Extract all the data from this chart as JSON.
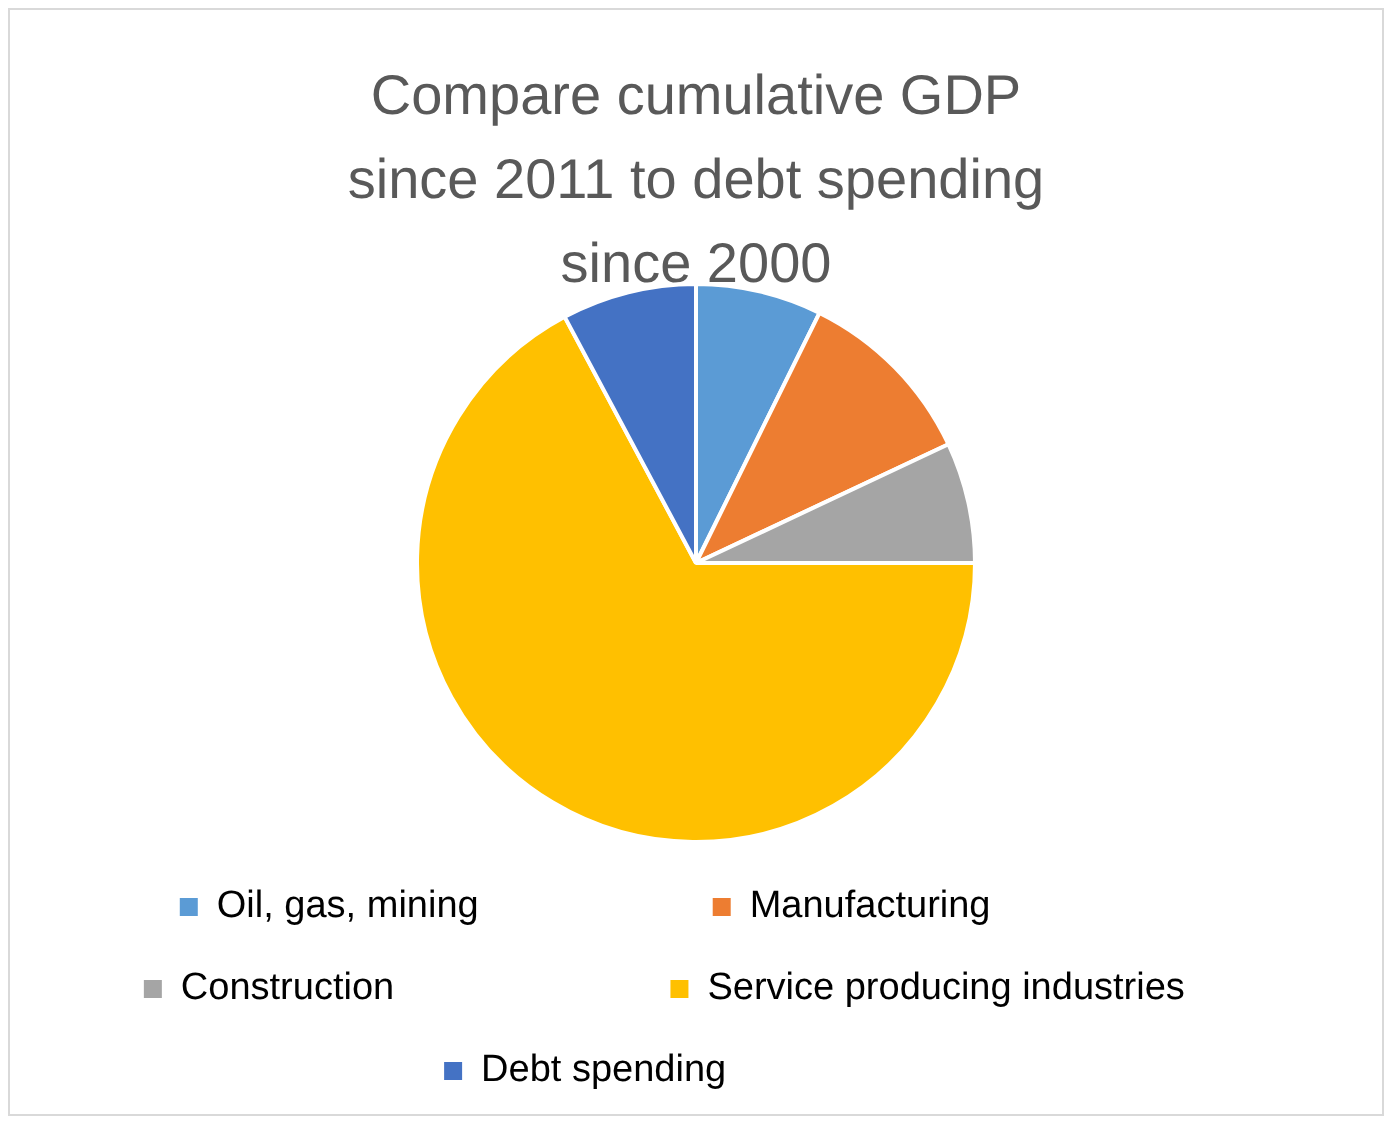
{
  "chart_data": {
    "type": "pie",
    "title": "Compare cumulative GDP since 2011 to debt spending since 2000",
    "categories": [
      "Oil, gas, mining",
      "Manufacturing",
      "Construction",
      "Service producing industries",
      "Debt spending"
    ],
    "values": [
      7.3,
      10.7,
      7,
      67.2,
      7.8
    ],
    "colors": [
      "#5b9bd5",
      "#ed7d31",
      "#a5a5a5",
      "#ffc000",
      "#4472c4"
    ],
    "legend": "bottom"
  }
}
